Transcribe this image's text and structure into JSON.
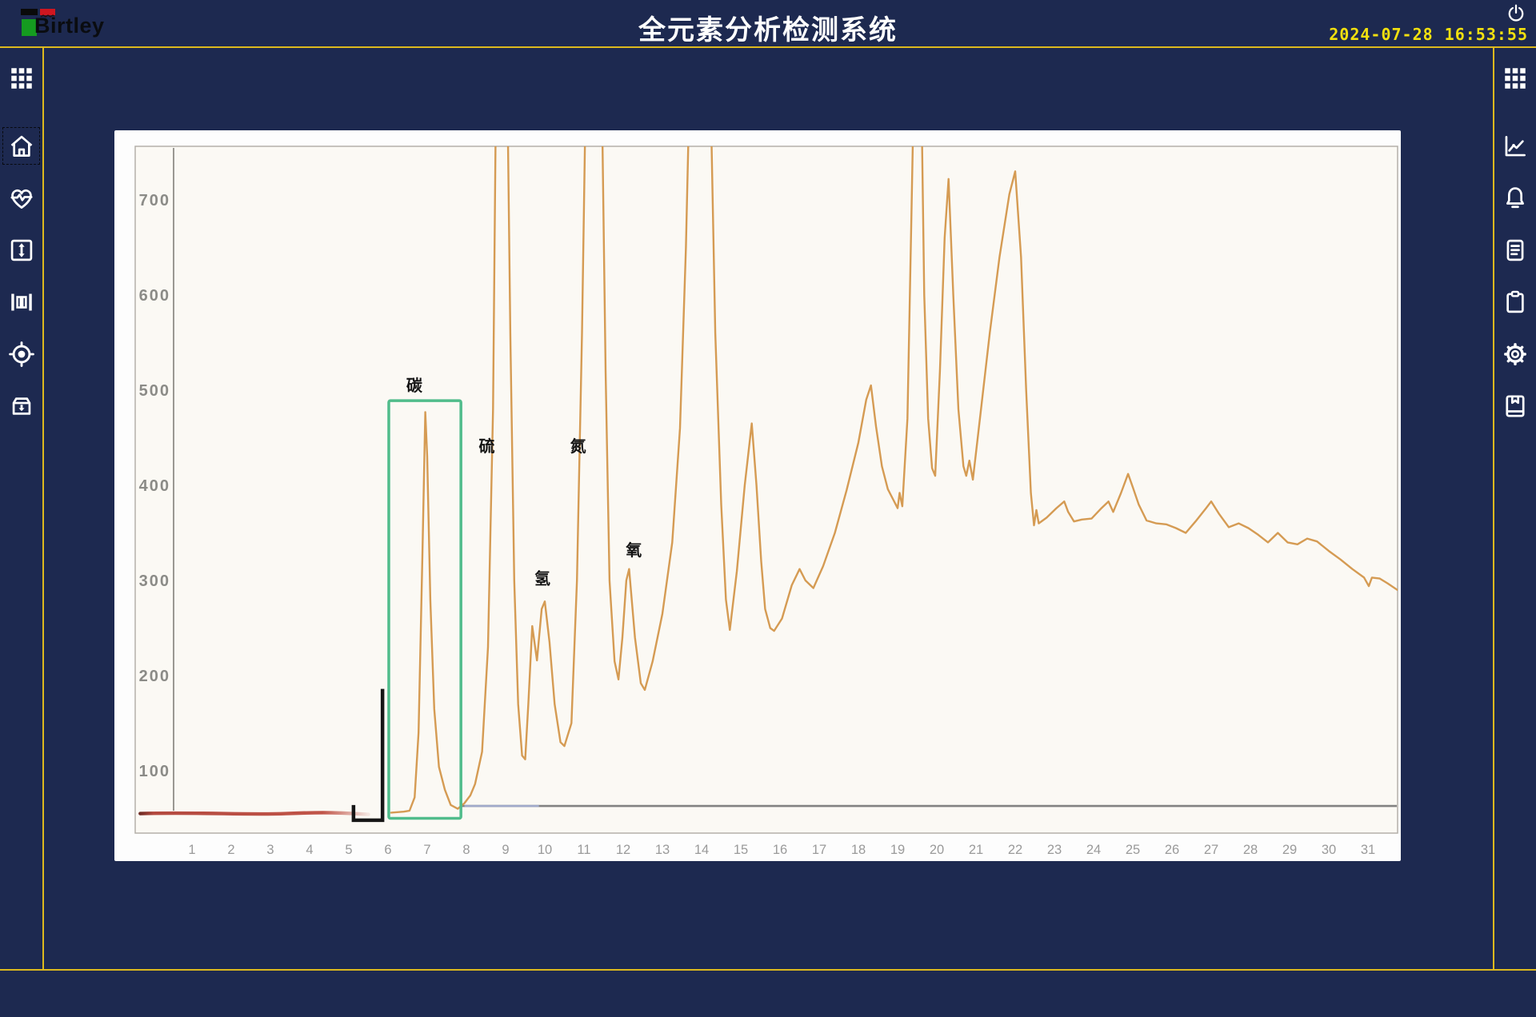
{
  "topbar": {
    "brand": "Birtley",
    "title": "全元素分析检测系统",
    "date": "2024-07-28",
    "time": "16:53:55"
  },
  "left_sidebar": {
    "items": [
      {
        "id": "apps",
        "icon": "grid-icon"
      },
      {
        "id": "home",
        "icon": "home-icon",
        "selected": true
      },
      {
        "id": "vitals",
        "icon": "heartbeat-icon"
      },
      {
        "id": "range",
        "icon": "vertical-resize-icon"
      },
      {
        "id": "columns",
        "icon": "gauge-bars-icon"
      },
      {
        "id": "locate",
        "icon": "target-icon"
      },
      {
        "id": "sample-box",
        "icon": "archive-in-icon"
      }
    ]
  },
  "right_sidebar": {
    "items": [
      {
        "id": "apps",
        "icon": "grid-icon"
      },
      {
        "id": "trends",
        "icon": "line-chart-icon"
      },
      {
        "id": "alarms",
        "icon": "bell-icon"
      },
      {
        "id": "reports",
        "icon": "document-icon"
      },
      {
        "id": "tasks",
        "icon": "clipboard-icon"
      },
      {
        "id": "settings",
        "icon": "gear-icon"
      },
      {
        "id": "records",
        "icon": "book-icon"
      }
    ]
  },
  "chart_data": {
    "type": "line",
    "title": "",
    "xlabel": "",
    "ylabel": "",
    "x_axis": {
      "ticks": [
        1,
        2,
        3,
        4,
        5,
        6,
        7,
        8,
        9,
        10,
        11,
        12,
        13,
        14,
        15,
        16,
        17,
        18,
        19,
        20,
        21,
        22,
        23,
        24,
        25,
        26,
        27,
        28,
        29,
        30,
        31
      ]
    },
    "y_axis": {
      "ticks": [
        700,
        600,
        500,
        400,
        300,
        200,
        100
      ]
    },
    "ylim": [
      0,
      756
    ],
    "grid": false,
    "series": [
      {
        "name": "chromatogram-signal",
        "color": "#d3964a",
        "points": [
          [
            6.08,
            56
          ],
          [
            6.4,
            57
          ],
          [
            6.55,
            58
          ],
          [
            6.68,
            72
          ],
          [
            6.78,
            140
          ],
          [
            6.88,
            330
          ],
          [
            6.95,
            477
          ],
          [
            7.0,
            430
          ],
          [
            7.08,
            280
          ],
          [
            7.18,
            165
          ],
          [
            7.3,
            104
          ],
          [
            7.45,
            80
          ],
          [
            7.6,
            64
          ],
          [
            7.78,
            60
          ],
          [
            7.95,
            66
          ],
          [
            8.1,
            74
          ],
          [
            8.22,
            86
          ],
          [
            8.4,
            120
          ],
          [
            8.55,
            230
          ],
          [
            8.68,
            480
          ],
          [
            8.76,
            830
          ],
          [
            9.04,
            830
          ],
          [
            9.12,
            560
          ],
          [
            9.22,
            300
          ],
          [
            9.32,
            170
          ],
          [
            9.42,
            116
          ],
          [
            9.5,
            112
          ],
          [
            9.58,
            170
          ],
          [
            9.68,
            252
          ],
          [
            9.8,
            216
          ],
          [
            9.92,
            270
          ],
          [
            10.0,
            278
          ],
          [
            10.12,
            235
          ],
          [
            10.25,
            170
          ],
          [
            10.4,
            130
          ],
          [
            10.5,
            126
          ],
          [
            10.68,
            150
          ],
          [
            10.82,
            300
          ],
          [
            10.95,
            560
          ],
          [
            11.05,
            830
          ],
          [
            11.45,
            830
          ],
          [
            11.55,
            520
          ],
          [
            11.65,
            300
          ],
          [
            11.78,
            215
          ],
          [
            11.88,
            196
          ],
          [
            11.98,
            240
          ],
          [
            12.08,
            300
          ],
          [
            12.15,
            312
          ],
          [
            12.3,
            240
          ],
          [
            12.45,
            192
          ],
          [
            12.55,
            185
          ],
          [
            12.75,
            215
          ],
          [
            13.0,
            265
          ],
          [
            13.25,
            340
          ],
          [
            13.45,
            460
          ],
          [
            13.6,
            650
          ],
          [
            13.7,
            830
          ],
          [
            14.22,
            830
          ],
          [
            14.35,
            560
          ],
          [
            14.5,
            380
          ],
          [
            14.62,
            280
          ],
          [
            14.72,
            248
          ],
          [
            14.9,
            310
          ],
          [
            15.1,
            400
          ],
          [
            15.28,
            465
          ],
          [
            15.4,
            400
          ],
          [
            15.52,
            320
          ],
          [
            15.62,
            270
          ],
          [
            15.75,
            250
          ],
          [
            15.85,
            247
          ],
          [
            16.05,
            260
          ],
          [
            16.3,
            295
          ],
          [
            16.5,
            312
          ],
          [
            16.65,
            300
          ],
          [
            16.85,
            292
          ],
          [
            17.1,
            315
          ],
          [
            17.4,
            350
          ],
          [
            17.7,
            395
          ],
          [
            18.0,
            445
          ],
          [
            18.2,
            490
          ],
          [
            18.32,
            505
          ],
          [
            18.45,
            462
          ],
          [
            18.6,
            420
          ],
          [
            18.75,
            396
          ],
          [
            18.9,
            384
          ],
          [
            19.0,
            376
          ],
          [
            19.05,
            392
          ],
          [
            19.12,
            378
          ],
          [
            19.25,
            470
          ],
          [
            19.35,
            680
          ],
          [
            19.42,
            830
          ],
          [
            19.6,
            830
          ],
          [
            19.68,
            600
          ],
          [
            19.78,
            470
          ],
          [
            19.88,
            418
          ],
          [
            19.96,
            410
          ],
          [
            20.08,
            520
          ],
          [
            20.2,
            660
          ],
          [
            20.3,
            722
          ],
          [
            20.42,
            600
          ],
          [
            20.55,
            480
          ],
          [
            20.68,
            420
          ],
          [
            20.75,
            410
          ],
          [
            20.83,
            426
          ],
          [
            20.92,
            406
          ],
          [
            21.1,
            470
          ],
          [
            21.35,
            560
          ],
          [
            21.6,
            640
          ],
          [
            21.85,
            706
          ],
          [
            22.0,
            730
          ],
          [
            22.15,
            640
          ],
          [
            22.28,
            500
          ],
          [
            22.4,
            392
          ],
          [
            22.48,
            358
          ],
          [
            22.54,
            374
          ],
          [
            22.6,
            360
          ],
          [
            22.8,
            366
          ],
          [
            23.05,
            376
          ],
          [
            23.25,
            383
          ],
          [
            23.35,
            372
          ],
          [
            23.5,
            362
          ],
          [
            23.7,
            364
          ],
          [
            23.95,
            365
          ],
          [
            24.2,
            376
          ],
          [
            24.38,
            383
          ],
          [
            24.5,
            372
          ],
          [
            24.7,
            392
          ],
          [
            24.88,
            412
          ],
          [
            25.0,
            398
          ],
          [
            25.15,
            380
          ],
          [
            25.35,
            363
          ],
          [
            25.6,
            360
          ],
          [
            25.85,
            359
          ],
          [
            26.1,
            355
          ],
          [
            26.35,
            350
          ],
          [
            26.6,
            362
          ],
          [
            26.85,
            375
          ],
          [
            27.0,
            383
          ],
          [
            27.2,
            370
          ],
          [
            27.45,
            356
          ],
          [
            27.7,
            360
          ],
          [
            27.95,
            355
          ],
          [
            28.2,
            348
          ],
          [
            28.45,
            340
          ],
          [
            28.7,
            350
          ],
          [
            28.95,
            340
          ],
          [
            29.2,
            338
          ],
          [
            29.45,
            344
          ],
          [
            29.7,
            341
          ],
          [
            30.0,
            331
          ],
          [
            30.3,
            322
          ],
          [
            30.6,
            312
          ],
          [
            30.9,
            303
          ],
          [
            31.02,
            294
          ],
          [
            31.1,
            303
          ],
          [
            31.3,
            302
          ],
          [
            31.5,
            297
          ],
          [
            31.75,
            290
          ],
          [
            31.92,
            287
          ]
        ]
      }
    ],
    "peak_labels": [
      {
        "text": "碳",
        "t": 6.67,
        "v": 505
      },
      {
        "text": "硫",
        "t": 8.52,
        "v": 441
      },
      {
        "text": "氢",
        "t": 9.94,
        "v": 302
      },
      {
        "text": "氮",
        "t": 10.85,
        "v": 441
      },
      {
        "text": "氧",
        "t": 12.27,
        "v": 332
      }
    ],
    "highlight_box": {
      "t1": 6.02,
      "t2": 7.86,
      "v1": 50,
      "v2": 489,
      "color": "#50bc8b"
    },
    "bracket": {
      "t": 5.86,
      "v_top": 186,
      "v_bottom": 48,
      "foot_t": 5.12,
      "tick_top_v": 64,
      "color": "#161616"
    },
    "red_baseline": {
      "t1": -0.32,
      "t2": 5.5,
      "v": 55,
      "color": "#b9473d"
    },
    "gray_baseline": {
      "t1": 7.86,
      "t2": 31.95,
      "v": 63,
      "color": "#6e6e6e"
    },
    "blue_baseline_segment": {
      "t1": 7.95,
      "t2": 9.85,
      "v": 63,
      "color": "#a4aed2"
    },
    "tick_color": "#9a9a9a",
    "y_tick_color": "#8b8b87"
  }
}
